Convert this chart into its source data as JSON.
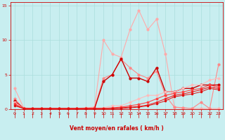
{
  "xlabel": "Vent moyen/en rafales ( km/h )",
  "xlim": [
    -0.5,
    23.5
  ],
  "ylim": [
    0,
    15.5
  ],
  "yticks": [
    0,
    5,
    10,
    15
  ],
  "xticks": [
    0,
    1,
    2,
    3,
    4,
    5,
    6,
    7,
    8,
    9,
    10,
    11,
    12,
    13,
    14,
    15,
    16,
    17,
    18,
    19,
    20,
    21,
    22,
    23
  ],
  "background_color": "#c8eef0",
  "grid_color": "#aadddd",
  "series": [
    {
      "x": [
        0,
        1,
        2,
        3,
        4,
        5,
        6,
        7,
        8,
        9,
        10,
        11,
        12,
        13,
        14,
        15,
        16,
        17,
        18,
        19,
        20,
        21,
        22,
        23
      ],
      "y": [
        3,
        0.2,
        0.1,
        0.1,
        0.1,
        0.1,
        0.1,
        0.1,
        0.2,
        0.3,
        10,
        8,
        7.5,
        11.5,
        14.3,
        11.5,
        13,
        8,
        0.3,
        0.2,
        0.1,
        0.1,
        0.1,
        0.1
      ],
      "color": "#ffaaaa",
      "linewidth": 0.8,
      "marker": "o",
      "markersize": 2.0
    },
    {
      "x": [
        0,
        1,
        2,
        3,
        4,
        5,
        6,
        7,
        8,
        9,
        10,
        11,
        12,
        13,
        14,
        15,
        16,
        17,
        18,
        19,
        20,
        21,
        22,
        23
      ],
      "y": [
        1.5,
        0.1,
        0.1,
        0.1,
        0.1,
        0.1,
        0.1,
        0.1,
        0.1,
        0.2,
        4.5,
        5,
        7.2,
        6,
        5,
        4.5,
        5.5,
        2,
        0.3,
        0.2,
        0.1,
        1,
        0.1,
        6.5
      ],
      "color": "#ff8888",
      "linewidth": 0.8,
      "marker": "o",
      "markersize": 2.0
    },
    {
      "x": [
        0,
        1,
        2,
        3,
        4,
        5,
        6,
        7,
        8,
        9,
        10,
        11,
        12,
        13,
        14,
        15,
        16,
        17,
        18,
        19,
        20,
        21,
        22,
        23
      ],
      "y": [
        1.2,
        0.1,
        0.1,
        0.1,
        0.1,
        0.1,
        0.1,
        0.1,
        0.1,
        0.1,
        4,
        5,
        7.3,
        4.5,
        4.5,
        4,
        6,
        2.5,
        2.5,
        3,
        3,
        3.5,
        3.5,
        3.5
      ],
      "color": "#cc0000",
      "linewidth": 1.0,
      "marker": "o",
      "markersize": 2.0
    },
    {
      "x": [
        0,
        1,
        2,
        3,
        4,
        5,
        6,
        7,
        8,
        9,
        10,
        11,
        12,
        13,
        14,
        15,
        16,
        17,
        18,
        19,
        20,
        21,
        22,
        23
      ],
      "y": [
        1.0,
        0.1,
        0.1,
        0.1,
        0.1,
        0.1,
        0.1,
        0.1,
        0.1,
        0.1,
        0.2,
        0.5,
        0.5,
        1,
        1.5,
        2,
        2,
        2.5,
        2.5,
        3,
        3.5,
        3.5,
        4.2,
        4.5
      ],
      "color": "#ffbbbb",
      "linewidth": 0.8,
      "marker": "o",
      "markersize": 1.8
    },
    {
      "x": [
        0,
        1,
        2,
        3,
        4,
        5,
        6,
        7,
        8,
        9,
        10,
        11,
        12,
        13,
        14,
        15,
        16,
        17,
        18,
        19,
        20,
        21,
        22,
        23
      ],
      "y": [
        0.8,
        0.1,
        0.1,
        0.1,
        0.1,
        0.1,
        0.1,
        0.1,
        0.1,
        0.1,
        0.1,
        0.2,
        0.3,
        0.5,
        0.7,
        1,
        1.5,
        2,
        2.3,
        2.5,
        2.8,
        3,
        3.5,
        3.2
      ],
      "color": "#ff4444",
      "linewidth": 0.8,
      "marker": "o",
      "markersize": 1.8
    },
    {
      "x": [
        0,
        1,
        2,
        3,
        4,
        5,
        6,
        7,
        8,
        9,
        10,
        11,
        12,
        13,
        14,
        15,
        16,
        17,
        18,
        19,
        20,
        21,
        22,
        23
      ],
      "y": [
        0.6,
        0.1,
        0.1,
        0.1,
        0.1,
        0.1,
        0.1,
        0.1,
        0.1,
        0.1,
        0.1,
        0.1,
        0.2,
        0.3,
        0.4,
        0.6,
        1,
        1.5,
        2,
        2.2,
        2.5,
        2.8,
        3.2,
        3.0
      ],
      "color": "#ee2222",
      "linewidth": 0.8,
      "marker": "o",
      "markersize": 1.5
    },
    {
      "x": [
        0,
        1,
        2,
        3,
        4,
        5,
        6,
        7,
        8,
        9,
        10,
        11,
        12,
        13,
        14,
        15,
        16,
        17,
        18,
        19,
        20,
        21,
        22,
        23
      ],
      "y": [
        0.5,
        0.1,
        0.1,
        0.1,
        0.1,
        0.1,
        0.1,
        0.1,
        0.1,
        0.1,
        0.1,
        0.1,
        0.1,
        0.2,
        0.3,
        0.5,
        0.8,
        1.2,
        1.8,
        2,
        2.2,
        2.5,
        3,
        2.8
      ],
      "color": "#dd1111",
      "linewidth": 0.7,
      "marker": "o",
      "markersize": 1.5
    }
  ],
  "wind_arrows_dir": [
    -1,
    -1,
    -1,
    -1,
    -1,
    -1,
    -1,
    -1,
    -1,
    -1,
    1,
    1,
    1,
    1,
    1,
    1,
    1,
    1,
    1,
    1,
    1,
    1,
    1,
    1
  ]
}
